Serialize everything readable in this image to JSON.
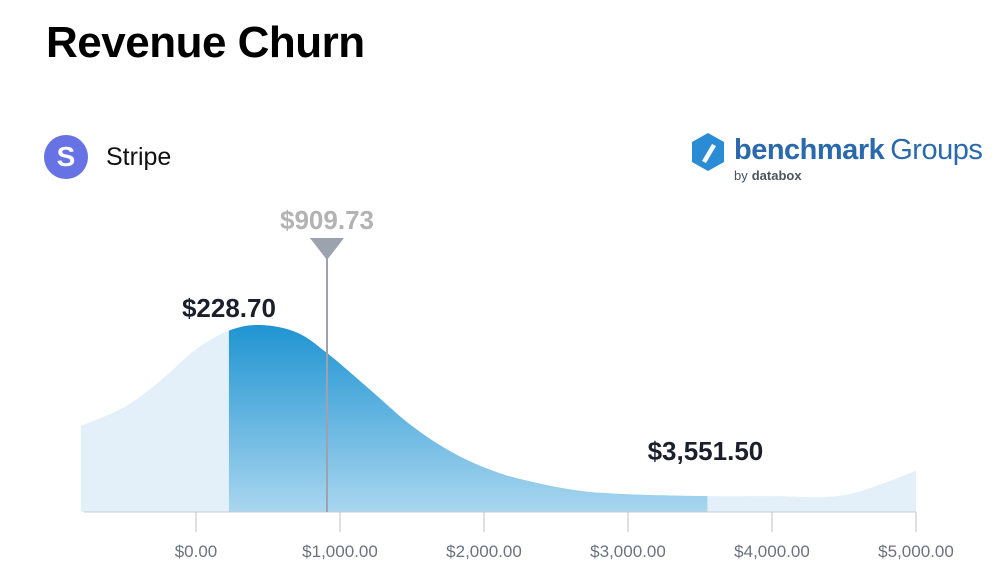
{
  "title": "Revenue Churn",
  "source": {
    "name": "Stripe",
    "logo_letter": "S",
    "logo_color": "#6772e5"
  },
  "brand": {
    "name_bold": "benchmark",
    "name_light": "Groups",
    "by": "by",
    "sub": "databox",
    "color": "#2a69ac",
    "icon_color": "#2a8cd4",
    "logo_name": "benchmark-groups-logo"
  },
  "chart_data": {
    "type": "area",
    "xlim": [
      -800,
      5000
    ],
    "x_ticks": [
      0,
      1000,
      2000,
      3000,
      4000,
      5000
    ],
    "x_tick_labels": [
      "$0.00",
      "$1,000.00",
      "$2,000.00",
      "$3,000.00",
      "$4,000.00",
      "$5,000.00"
    ],
    "distribution_curve": {
      "x": [
        -800,
        -500,
        -250,
        0,
        228.7,
        450,
        700,
        909.73,
        1200,
        1500,
        1800,
        2100,
        2400,
        2700,
        3000,
        3300,
        3551.5,
        4000,
        4500,
        5000
      ],
      "relative_density": [
        0.46,
        0.56,
        0.7,
        0.87,
        0.97,
        1.0,
        0.96,
        0.85,
        0.66,
        0.46,
        0.31,
        0.21,
        0.15,
        0.11,
        0.095,
        0.088,
        0.085,
        0.085,
        0.09,
        0.22
      ]
    },
    "highlighted_range": {
      "low": 228.7,
      "high": 3551.5,
      "low_label": "$228.70",
      "high_label": "$3,551.50"
    },
    "median": {
      "value": 909.73,
      "label": "$909.73"
    },
    "colors": {
      "range_top": "#1f94d2",
      "range_bottom": "#a9d6ef",
      "outside": "#e3f0fa",
      "median_line": "#9ca3af",
      "median_label": "#b3b3b3",
      "range_label": "#1a1f2b",
      "axis": "#c7cbd1"
    }
  }
}
